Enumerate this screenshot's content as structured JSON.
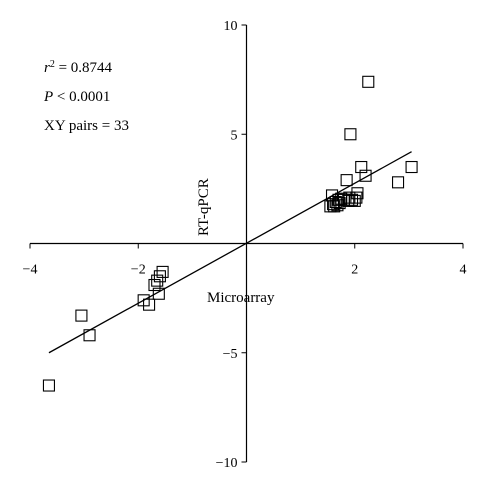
{
  "chart_data": {
    "type": "scatter",
    "title": "",
    "xlabel": "Microarray",
    "ylabel": "RT-qPCR",
    "xlim": [
      -4,
      4
    ],
    "ylim": [
      -10,
      10
    ],
    "x_ticks": [
      -4,
      -2,
      2,
      4
    ],
    "y_ticks": [
      -10,
      -5,
      5,
      10
    ],
    "x_tick_labels": [
      "−4",
      "−2",
      "2",
      "4"
    ],
    "y_tick_labels": [
      "−10",
      "−5",
      "5",
      "10"
    ],
    "grid": false,
    "legend": "none",
    "marker": "open-square",
    "annotations": {
      "r2_symbol": "r",
      "r2_exponent": "2",
      "r2_value": " = 0.8744",
      "p_symbol": "P",
      "p_value": " < 0.0001",
      "pairs": "XY pairs = 33"
    },
    "fit_line": {
      "x": [
        -3.65,
        3.05
      ],
      "y": [
        -5.0,
        4.2
      ]
    },
    "points": [
      {
        "x": -3.65,
        "y": -6.5
      },
      {
        "x": -3.05,
        "y": -3.3
      },
      {
        "x": -2.9,
        "y": -4.2
      },
      {
        "x": -1.9,
        "y": -2.6
      },
      {
        "x": -1.8,
        "y": -2.8
      },
      {
        "x": -1.7,
        "y": -1.9
      },
      {
        "x": -1.65,
        "y": -1.7
      },
      {
        "x": -1.62,
        "y": -2.3
      },
      {
        "x": -1.6,
        "y": -1.5
      },
      {
        "x": -1.55,
        "y": -1.3
      },
      {
        "x": 1.55,
        "y": 1.7
      },
      {
        "x": 1.58,
        "y": 2.2
      },
      {
        "x": 1.6,
        "y": 1.8
      },
      {
        "x": 1.62,
        "y": 1.7
      },
      {
        "x": 1.65,
        "y": 1.9
      },
      {
        "x": 1.68,
        "y": 1.75
      },
      {
        "x": 1.7,
        "y": 2.0
      },
      {
        "x": 1.72,
        "y": 1.85
      },
      {
        "x": 1.75,
        "y": 2.05
      },
      {
        "x": 1.8,
        "y": 2.0
      },
      {
        "x": 1.85,
        "y": 2.9
      },
      {
        "x": 1.88,
        "y": 1.95
      },
      {
        "x": 1.9,
        "y": 2.1
      },
      {
        "x": 1.92,
        "y": 5.0
      },
      {
        "x": 1.95,
        "y": 2.0
      },
      {
        "x": 2.0,
        "y": 1.95
      },
      {
        "x": 2.03,
        "y": 2.1
      },
      {
        "x": 2.05,
        "y": 2.3
      },
      {
        "x": 2.12,
        "y": 3.5
      },
      {
        "x": 2.2,
        "y": 3.1
      },
      {
        "x": 2.25,
        "y": 7.4
      },
      {
        "x": 2.8,
        "y": 2.8
      },
      {
        "x": 3.05,
        "y": 3.5
      }
    ]
  }
}
